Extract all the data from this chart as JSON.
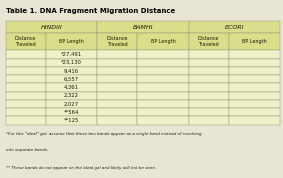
{
  "title": "Table 1. DNA Fragment Migration Distance",
  "col_groups": [
    "HINDIII",
    "BAMHI",
    "ECORI"
  ],
  "col_headers": [
    "Distance\nTraveled",
    "BP Length",
    "Distance\nTraveled",
    "BP Length",
    "Distance\nTraveled",
    "BP Length"
  ],
  "bp_values": [
    "*27,491",
    "*23,130",
    "9,416",
    "6,557",
    "4,361",
    "2,322",
    "2,027",
    "**564",
    "**125"
  ],
  "n_data_rows": 9,
  "header_bg": "#d9de8a",
  "row_bg": "#eef0c8",
  "row_bg_alt": "#f5f6e0",
  "border_color": "#999977",
  "title_color": "#000000",
  "footnote1": "*For this “ideal” gel, assume that these two bands appear as a single band instead of resolving into separate bands.",
  "footnote2": "** These bands do not appear on the ideal gel and likely will not be seen.",
  "fig_bg": "#e8e5d4"
}
